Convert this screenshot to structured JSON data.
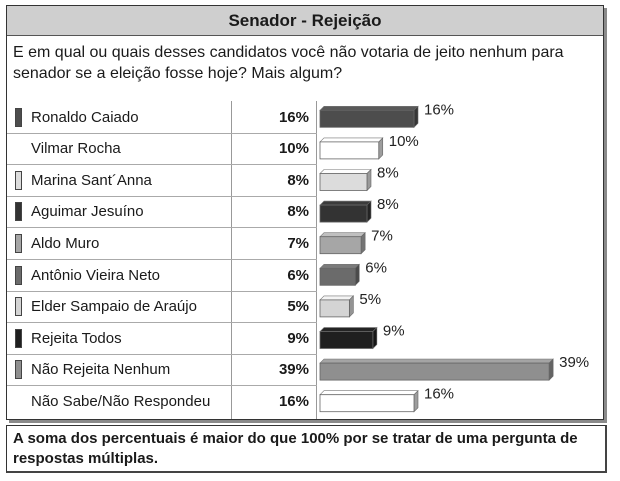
{
  "title": "Senador - Rejeição",
  "question": "E em qual ou quais desses candidatos você não votaria de jeito nenhum para senador se a eleição fosse hoje? Mais algum?",
  "note": "A soma dos percentuais é maior do que 100% por se tratar de uma pergunta de respostas múltiplas.",
  "chart_data": {
    "type": "bar",
    "orientation": "horizontal",
    "categories": [
      "Ronaldo Caiado",
      "Vilmar Rocha",
      "Marina Sant´Anna",
      "Aguimar Jesuíno",
      "Aldo Muro",
      "Antônio Vieira Neto",
      "Elder Sampaio de Araújo",
      "Rejeita Todos",
      "Não Rejeita Nenhum",
      "Não Sabe/Não Respondeu"
    ],
    "values": [
      16,
      10,
      8,
      8,
      7,
      6,
      5,
      9,
      39,
      16
    ],
    "value_labels": [
      "16%",
      "10%",
      "8%",
      "8%",
      "7%",
      "6%",
      "5%",
      "9%",
      "39%",
      "16%"
    ],
    "colors": [
      "#4d4d4d",
      "#ffffff",
      "#dcdcdc",
      "#333333",
      "#a6a6a6",
      "#6b6b6b",
      "#d4d4d4",
      "#1f1f1f",
      "#8f8f8f",
      "#ffffff"
    ],
    "xlim": [
      0,
      40
    ]
  }
}
